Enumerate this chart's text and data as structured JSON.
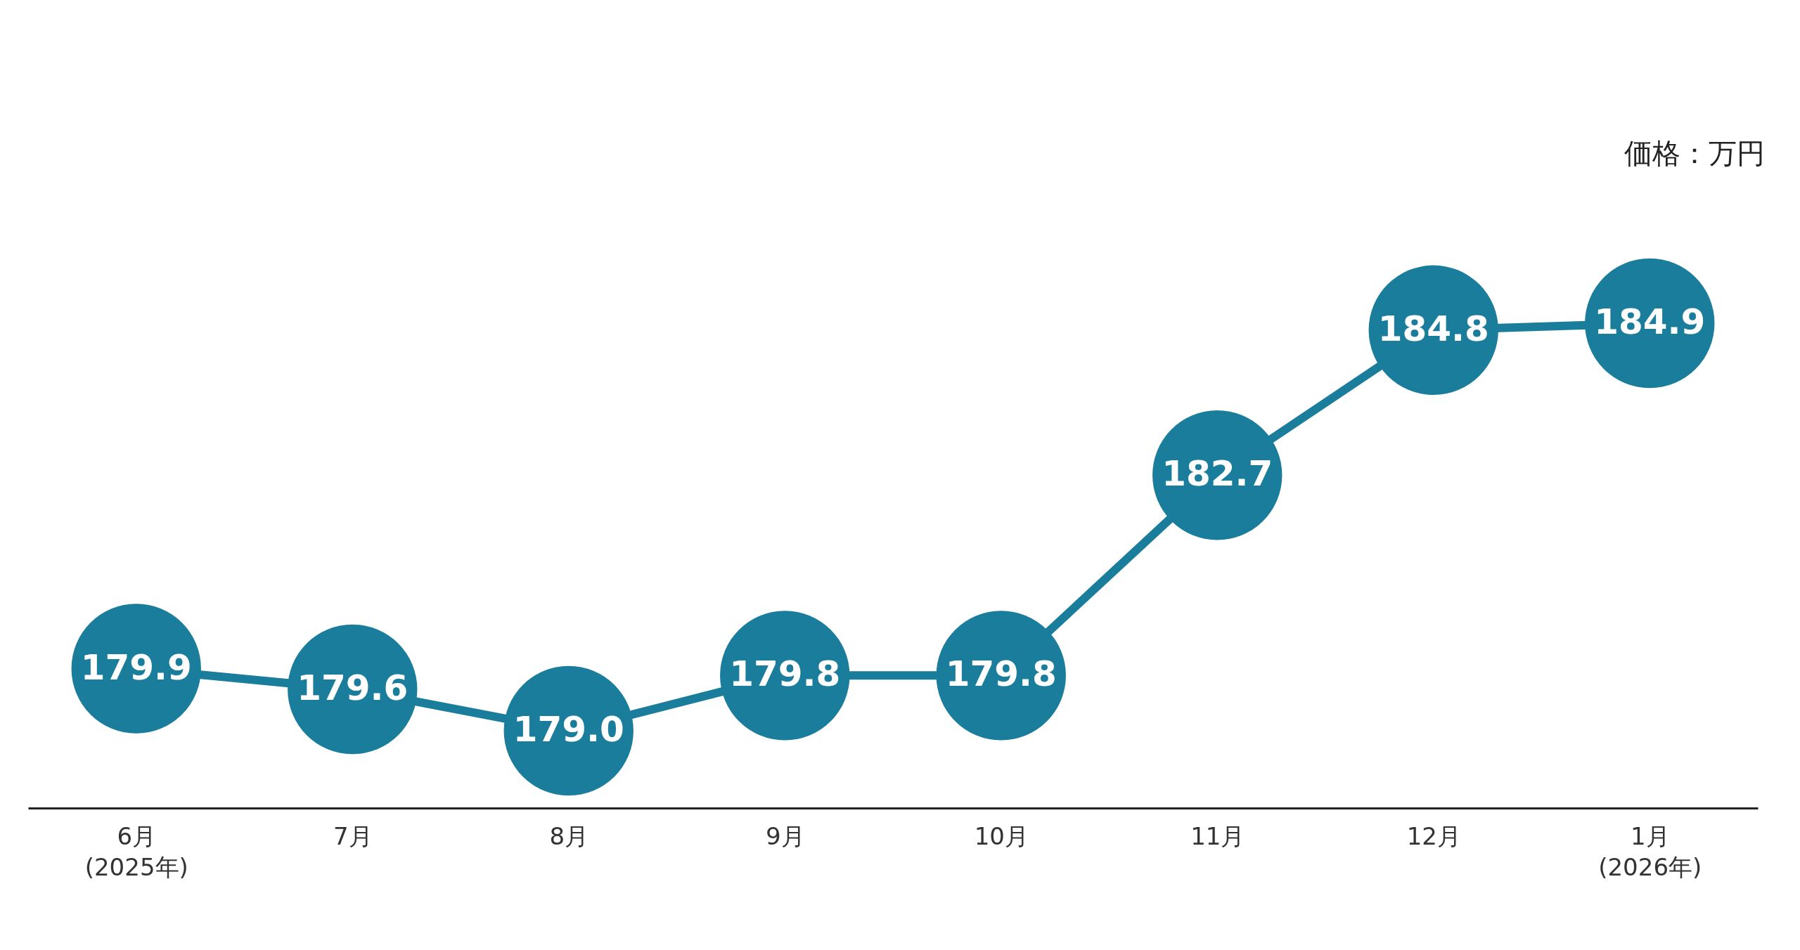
{
  "chart_data": {
    "type": "line",
    "annotations": [
      "価格：万円"
    ],
    "categories": [
      "6月\n(2025年)",
      "7月",
      "8月",
      "9月",
      "10月",
      "11月",
      "12月",
      "1月\n(2026年)"
    ],
    "series": [
      {
        "color": "#1b7d9c",
        "values": [
          179.9,
          179.6,
          179.0,
          179.8,
          179.8,
          182.7,
          184.8,
          184.9
        ]
      },
      {
        "type": "scatter",
        "marker": "circle",
        "color": "#1b7d9c",
        "values": [
          179.9,
          179.6,
          179.0,
          179.8,
          179.8,
          182.7,
          184.8,
          184.9
        ],
        "value_labels": [
          "179.9",
          "179.6",
          "179.0",
          "179.8",
          "179.8",
          "182.7",
          "184.8",
          "184.9"
        ]
      }
    ],
    "grid": false
  }
}
